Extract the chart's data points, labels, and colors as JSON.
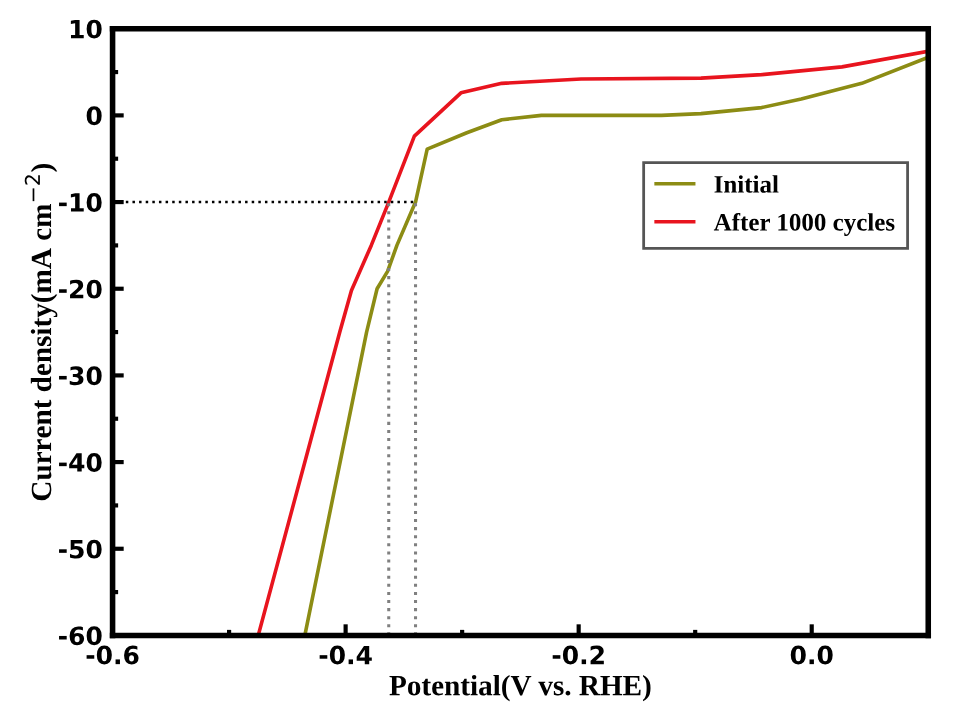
{
  "chart_data": {
    "type": "line",
    "xlabel": "Potential(V vs. RHE)",
    "ylabel": "Current density(mA cm$^{−2}$)",
    "xlim": [
      -0.6,
      0.1
    ],
    "xticks": [
      -0.6,
      -0.4,
      -0.2,
      {
        "value": 0,
        "label": "0.0"
      }
    ],
    "ylim": [
      -60,
      10
    ],
    "yticks": [
      -60,
      -50,
      -40,
      -30,
      -20,
      -10,
      0,
      10
    ],
    "grid": false,
    "legend": "right",
    "marker": "none",
    "line_style": "solid",
    "series": [
      {
        "name": "Initial",
        "color": "#8c8c14",
        "x": [
          -0.435,
          -0.382,
          -0.373,
          -0.364,
          -0.356,
          -0.34,
          -0.33,
          -0.296,
          -0.266,
          -0.232,
          -0.129,
          -0.095,
          -0.043,
          -0.009,
          0.043,
          0.1
        ],
        "values": [
          -60,
          -25,
          -20,
          -18,
          -15,
          -10,
          -3.9,
          -2.0,
          -0.5,
          0,
          0,
          0.2,
          0.9,
          1.9,
          3.7,
          6.7
        ]
      },
      {
        "name": "After 1000 cycles",
        "color": "#e8141e",
        "x": [
          -0.475,
          -0.405,
          -0.395,
          -0.378,
          -0.363,
          -0.341,
          -0.301,
          -0.266,
          -0.198,
          -0.095,
          -0.043,
          0.026,
          0.1
        ],
        "values": [
          -60,
          -25,
          -20.2,
          -15,
          -10,
          -2.4,
          2.6,
          3.7,
          4.2,
          4.3,
          4.7,
          5.6,
          7.4
        ]
      }
    ],
    "ref_lines": [
      {
        "axis": "y",
        "value": -10,
        "color": "#000000",
        "line_style": "dotted"
      },
      {
        "axis": "x",
        "value": -0.363,
        "color": "#808080",
        "line_style": "dotted"
      },
      {
        "axis": "x",
        "value": -0.34,
        "color": "#808080",
        "line_style": "dotted"
      }
    ]
  }
}
